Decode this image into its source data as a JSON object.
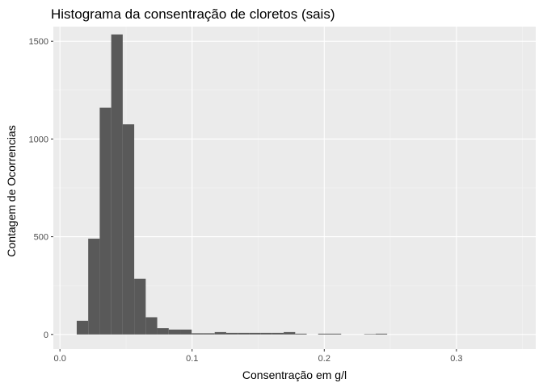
{
  "chart_data": {
    "type": "bar",
    "title": "Histograma da consentração de cloretos (sais)",
    "xlabel": "Consentração em g/l",
    "ylabel": "Contagem de Ocorrencias",
    "xlim": [
      -0.005,
      0.36
    ],
    "ylim": [
      -75,
      1575
    ],
    "x_ticks": [
      0.0,
      0.1,
      0.2,
      0.3
    ],
    "x_tick_labels": [
      "0.0",
      "0.1",
      "0.2",
      "0.3"
    ],
    "y_ticks": [
      0,
      500,
      1000,
      1500
    ],
    "y_tick_labels": [
      "0",
      "500",
      "1000",
      "1500"
    ],
    "bin_width": 0.0087,
    "bins": [
      {
        "x0": 0.0127,
        "x1": 0.0214,
        "count": 70
      },
      {
        "x0": 0.0214,
        "x1": 0.0301,
        "count": 490
      },
      {
        "x0": 0.0301,
        "x1": 0.0388,
        "count": 1160
      },
      {
        "x0": 0.0388,
        "x1": 0.0475,
        "count": 1535
      },
      {
        "x0": 0.0475,
        "x1": 0.0562,
        "count": 1075
      },
      {
        "x0": 0.0562,
        "x1": 0.0649,
        "count": 285
      },
      {
        "x0": 0.0649,
        "x1": 0.0736,
        "count": 88
      },
      {
        "x0": 0.0736,
        "x1": 0.0823,
        "count": 32
      },
      {
        "x0": 0.0823,
        "x1": 0.091,
        "count": 25
      },
      {
        "x0": 0.091,
        "x1": 0.0997,
        "count": 25
      },
      {
        "x0": 0.0997,
        "x1": 0.1084,
        "count": 6
      },
      {
        "x0": 0.1084,
        "x1": 0.1171,
        "count": 6
      },
      {
        "x0": 0.1171,
        "x1": 0.1258,
        "count": 12
      },
      {
        "x0": 0.1258,
        "x1": 0.1345,
        "count": 8
      },
      {
        "x0": 0.1345,
        "x1": 0.1432,
        "count": 8
      },
      {
        "x0": 0.1432,
        "x1": 0.1519,
        "count": 8
      },
      {
        "x0": 0.1519,
        "x1": 0.1606,
        "count": 8
      },
      {
        "x0": 0.1606,
        "x1": 0.1693,
        "count": 8
      },
      {
        "x0": 0.1693,
        "x1": 0.178,
        "count": 12
      },
      {
        "x0": 0.178,
        "x1": 0.1867,
        "count": 4
      },
      {
        "x0": 0.1867,
        "x1": 0.1954,
        "count": 0
      },
      {
        "x0": 0.1954,
        "x1": 0.2041,
        "count": 4
      },
      {
        "x0": 0.2041,
        "x1": 0.2128,
        "count": 4
      },
      {
        "x0": 0.2128,
        "x1": 0.2215,
        "count": 0
      },
      {
        "x0": 0.2215,
        "x1": 0.2302,
        "count": 0
      },
      {
        "x0": 0.2302,
        "x1": 0.2389,
        "count": 2
      },
      {
        "x0": 0.2389,
        "x1": 0.2476,
        "count": 4
      },
      {
        "x0": 0.2476,
        "x1": 0.2563,
        "count": 0
      },
      {
        "x0": 0.2563,
        "x1": 0.265,
        "count": 0
      },
      {
        "x0": 0.265,
        "x1": 0.2737,
        "count": 0
      },
      {
        "x0": 0.2737,
        "x1": 0.2824,
        "count": 0
      },
      {
        "x0": 0.2824,
        "x1": 0.2911,
        "count": 0
      },
      {
        "x0": 0.2911,
        "x1": 0.2998,
        "count": 0
      },
      {
        "x0": 0.2998,
        "x1": 0.3085,
        "count": 0
      },
      {
        "x0": 0.3085,
        "x1": 0.3172,
        "count": 0
      },
      {
        "x0": 0.3172,
        "x1": 0.3259,
        "count": 0
      },
      {
        "x0": 0.3259,
        "x1": 0.3346,
        "count": 0
      },
      {
        "x0": 0.3346,
        "x1": 0.3433,
        "count": 0
      },
      {
        "x0": 0.3433,
        "x1": 0.352,
        "count": 0
      }
    ],
    "grid": true,
    "legend": "none",
    "colors": {
      "panel_background": "#ebebeb",
      "grid_major": "#ffffff",
      "grid_minor": "#f5f5f5",
      "bar_fill": "#595959",
      "tick_mark": "#333333"
    }
  }
}
